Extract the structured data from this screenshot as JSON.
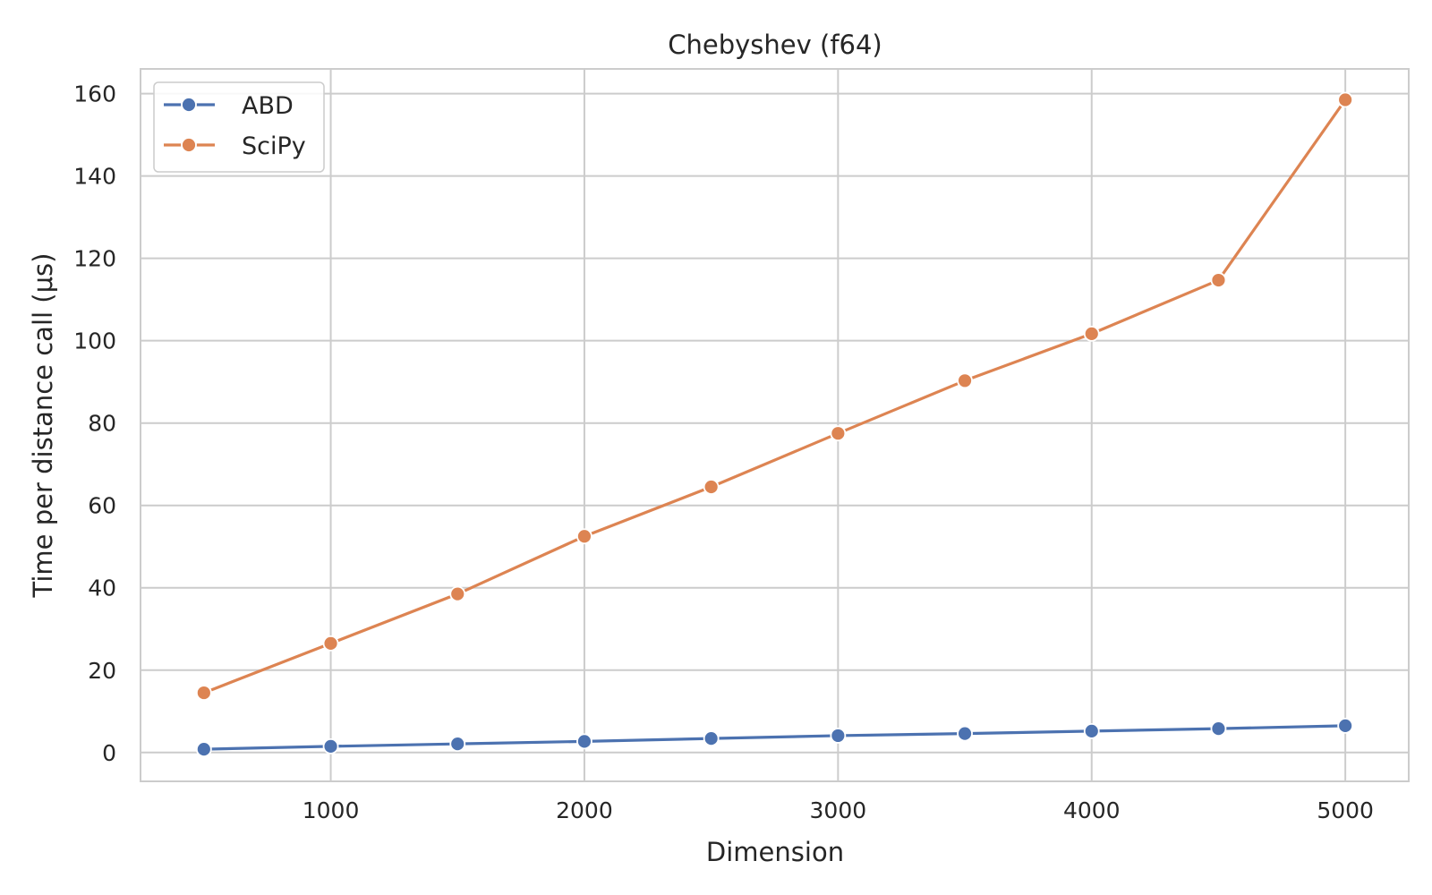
{
  "chart_data": {
    "type": "line",
    "title": "Chebyshev (f64)",
    "xlabel": "Dimension",
    "ylabel": "Time per distance call (μs)",
    "xlim": [
      250,
      5250
    ],
    "ylim": [
      -7,
      166
    ],
    "x_ticks": [
      1000,
      2000,
      3000,
      4000,
      5000
    ],
    "y_ticks": [
      0,
      20,
      40,
      60,
      80,
      100,
      120,
      140,
      160
    ],
    "grid": true,
    "legend_position": "top-left",
    "x": [
      500,
      1000,
      1500,
      2000,
      2500,
      3000,
      3500,
      4000,
      4500,
      5000
    ],
    "series": [
      {
        "name": "ABD",
        "color": "#4c72b0",
        "marker": "circle",
        "values": [
          0.8,
          1.5,
          2.1,
          2.7,
          3.4,
          4.1,
          4.6,
          5.2,
          5.8,
          6.5
        ]
      },
      {
        "name": "SciPy",
        "color": "#dd8452",
        "marker": "circle",
        "values": [
          14.5,
          26.5,
          38.5,
          52.5,
          64.5,
          77.5,
          90.3,
          101.7,
          114.7,
          158.5
        ]
      }
    ]
  }
}
